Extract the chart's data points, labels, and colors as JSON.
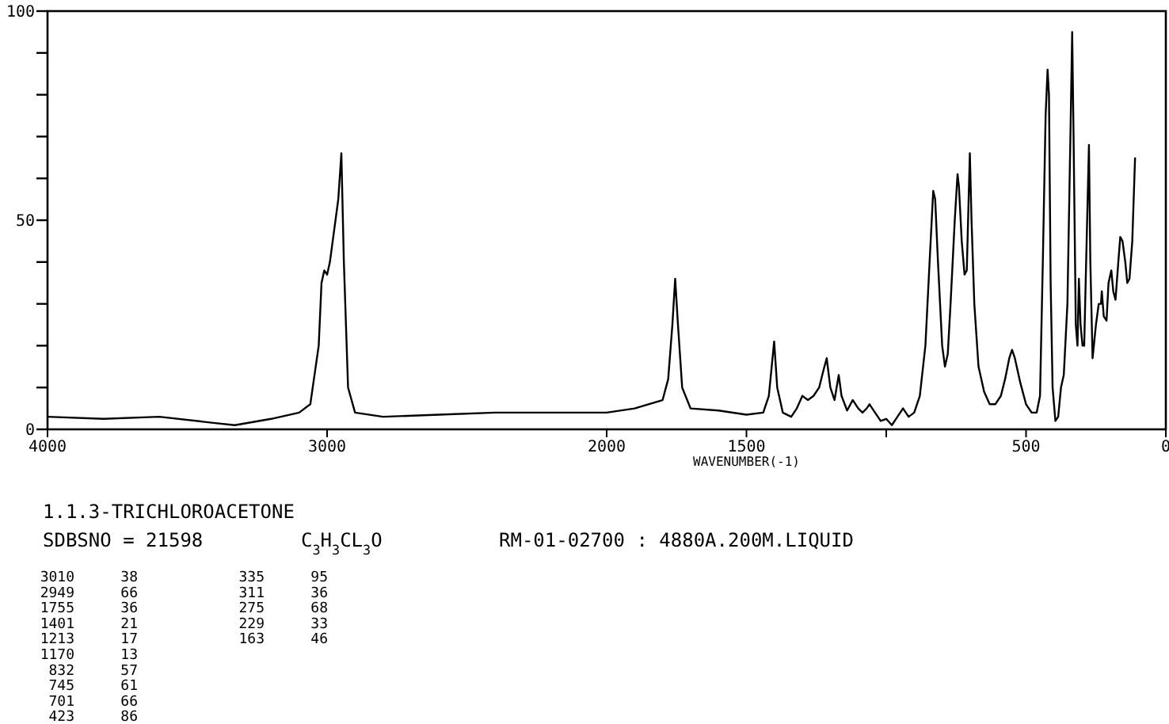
{
  "chart_data": {
    "type": "line",
    "title": "1.1.3-TRICHLOROACETONE",
    "subtitle": "SDBSNO = 21598",
    "xlabel": "WAVENUMBER(-1)",
    "annotations": [
      "C$_{3}$H$_{3}$CL$_{3}$O",
      "RM-01-02700 : 4880A.200M.LIQUID",
      "3010 38",
      "2949 66",
      "1755 36",
      "1401 21",
      "1213 17",
      "1170 13",
      "832 57",
      "745 61",
      "701 66",
      "423 86",
      "335 95",
      "311 36",
      "275 68",
      "229 33",
      "163 46"
    ],
    "xlim": [
      4000,
      0
    ],
    "xticks": [
      4000,
      3000,
      2000,
      1500,
      {
        "value": 1000,
        "label": null
      },
      500,
      0
    ],
    "ylim": [
      0,
      100
    ],
    "yticks": [
      0,
      {
        "value": 10,
        "label": null
      },
      {
        "value": 20,
        "label": null
      },
      {
        "value": 30,
        "label": null
      },
      {
        "value": 40,
        "label": null
      },
      50,
      {
        "value": 60,
        "label": null
      },
      {
        "value": 70,
        "label": null
      },
      {
        "value": 80,
        "label": null
      },
      {
        "value": 90,
        "label": null
      },
      100
    ],
    "grid": false,
    "marker": "none",
    "line_style": "solid",
    "series": [
      {
        "color": "#000000",
        "x": [
          4000,
          3800,
          3600,
          3400,
          3330,
          3200,
          3100,
          3060,
          3030,
          3020,
          3010,
          3000,
          2990,
          2960,
          2949,
          2940,
          2925,
          2900,
          2800,
          2600,
          2400,
          2200,
          2000,
          1900,
          1800,
          1780,
          1765,
          1755,
          1745,
          1730,
          1700,
          1600,
          1500,
          1440,
          1420,
          1401,
          1390,
          1370,
          1340,
          1320,
          1300,
          1280,
          1260,
          1240,
          1225,
          1213,
          1200,
          1185,
          1170,
          1160,
          1140,
          1120,
          1100,
          1085,
          1070,
          1060,
          1040,
          1020,
          1000,
          980,
          960,
          940,
          920,
          900,
          880,
          860,
          845,
          832,
          825,
          815,
          800,
          790,
          780,
          770,
          755,
          745,
          740,
          730,
          720,
          712,
          701,
          695,
          685,
          670,
          650,
          630,
          610,
          590,
          575,
          560,
          550,
          540,
          520,
          500,
          480,
          462,
          450,
          440,
          430,
          423,
          418,
          412,
          405,
          395,
          385,
          375,
          365,
          352,
          340,
          335,
          330,
          322,
          316,
          311,
          305,
          298,
          292,
          285,
          275,
          270,
          262,
          250,
          240,
          232,
          229,
          222,
          212,
          205,
          195,
          188,
          180,
          170,
          163,
          155,
          145,
          138,
          130,
          120,
          110
        ],
        "values": [
          3,
          2.5,
          3,
          1.5,
          1,
          2.5,
          4,
          6,
          20,
          35,
          38,
          37,
          40,
          55,
          66,
          40,
          10,
          4,
          3,
          3.5,
          4,
          4,
          4,
          5,
          7,
          12,
          25,
          36,
          25,
          10,
          5,
          4.5,
          3.5,
          4,
          8,
          21,
          10,
          4,
          3,
          5,
          8,
          7,
          8,
          10,
          14,
          17,
          10,
          7,
          13,
          8,
          4.5,
          7,
          5,
          4,
          5,
          6,
          4,
          2,
          2.5,
          1,
          3,
          5,
          3,
          4,
          8,
          20,
          40,
          57,
          55,
          40,
          20,
          15,
          18,
          30,
          50,
          61,
          58,
          45,
          37,
          38,
          66,
          50,
          30,
          15,
          9,
          6,
          6,
          8,
          12,
          17,
          19,
          17,
          11,
          6,
          4,
          4,
          8,
          40,
          75,
          86,
          80,
          35,
          10,
          2,
          3,
          10,
          13,
          30,
          75,
          95,
          70,
          25,
          20,
          36,
          25,
          20,
          20,
          40,
          68,
          40,
          17,
          25,
          30,
          30,
          33,
          27,
          26,
          35,
          38,
          33,
          31,
          40,
          46,
          45,
          40,
          35,
          36,
          45,
          65
        ]
      }
    ]
  }
}
